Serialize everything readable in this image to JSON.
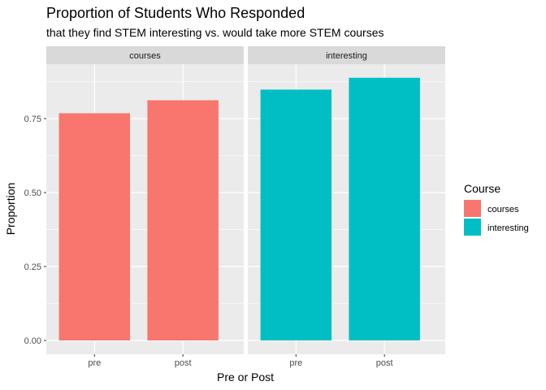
{
  "chart_data": {
    "type": "bar",
    "title": "Proportion of Students Who Responded",
    "subtitle": "that they find STEM interesting vs. would take more STEM courses",
    "xlabel": "Pre or Post",
    "ylabel": "Proportion",
    "categories": [
      "pre",
      "post"
    ],
    "ylim": [
      0,
      0.89
    ],
    "yticks": [
      0.0,
      0.25,
      0.5,
      0.75
    ],
    "ytick_labels": [
      "0.00",
      "0.25",
      "0.50",
      "0.75"
    ],
    "grid": true,
    "legend_position": "right",
    "legend_title": "Course",
    "facets": [
      {
        "name": "courses",
        "values": [
          0.768,
          0.812
        ],
        "color": "#F8766D"
      },
      {
        "name": "interesting",
        "values": [
          0.848,
          0.888
        ],
        "color": "#00BFC4"
      }
    ],
    "legend": [
      {
        "label": "courses",
        "color": "#F8766D"
      },
      {
        "label": "interesting",
        "color": "#00BFC4"
      }
    ]
  },
  "colors": {
    "panel_background": "#EBEBEB",
    "strip_background": "#D9D9D9",
    "grid": "#FFFFFF",
    "tick": "#333333"
  }
}
